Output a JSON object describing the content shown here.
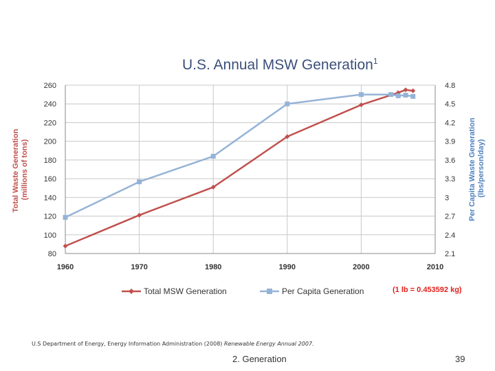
{
  "chart_data": {
    "type": "line",
    "title": "U.S. Annual MSW Generation",
    "title_superscript": "1",
    "xlabel": "",
    "ylabel_left": "Total Waste Generation (millions of tons)",
    "ylabel_left_line1": "Total Waste Generation",
    "ylabel_left_line2": "(millions of tons)",
    "ylabel_right": "Per Capita Waste Generation (lbs/person/day)",
    "ylabel_right_line1": "Per Capita Waste Generation",
    "ylabel_right_line2": "(lbs/person/day)",
    "xlim": [
      1960,
      2010
    ],
    "ylim_left": [
      80,
      260
    ],
    "ylim_right": [
      2.1,
      4.8
    ],
    "x_ticks": [
      "1960",
      "1970",
      "1980",
      "1990",
      "2000",
      "2010"
    ],
    "y_left_ticks": [
      "260",
      "240",
      "220",
      "200",
      "180",
      "160",
      "140",
      "120",
      "100",
      "80"
    ],
    "y_right_ticks": [
      "4.8",
      "4.5",
      "4.2",
      "3.9",
      "3.6",
      "3.3",
      "3",
      "2.7",
      "2.4",
      "2.1"
    ],
    "grid": true,
    "legend_position": "bottom",
    "series": [
      {
        "name": "Total MSW Generation",
        "axis": "left",
        "color": "#c0504d",
        "marker": "diamond",
        "x": [
          1960,
          1970,
          1980,
          1990,
          2000,
          2005,
          2006,
          2007
        ],
        "values": [
          88,
          121,
          151,
          205,
          239,
          252,
          255,
          254
        ]
      },
      {
        "name": "Per Capita Generation",
        "axis": "right",
        "color": "#95b3d7",
        "marker": "square",
        "x": [
          1960,
          1970,
          1980,
          1990,
          2000,
          2004,
          2005,
          2006,
          2007
        ],
        "values": [
          2.68,
          3.25,
          3.66,
          4.5,
          4.65,
          4.65,
          4.63,
          4.64,
          4.62
        ]
      }
    ]
  },
  "note": "(1 lb = 0.453592 kg)",
  "source_prefix": "U.S Department of Energy, Energy Information Administration (2008) ",
  "source_italic": "Renewable Energy Annual 2007.",
  "footer_label": "2. Generation",
  "page_number": "39"
}
